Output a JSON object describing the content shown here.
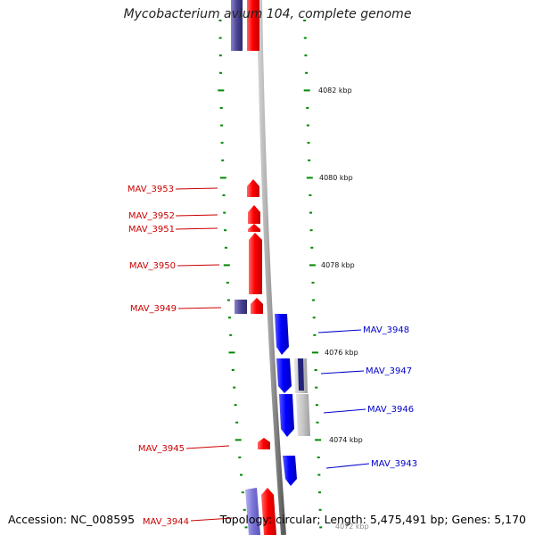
{
  "title": "Mycobacterium avium 104, complete genome",
  "footer": {
    "accession": "Accession: NC_008595",
    "summary": "Topology: circular; Length: 5,475,491 bp; Genes: 5,170"
  },
  "colors": {
    "forward_gene": "#ff0000",
    "reverse_gene": "#0000ff",
    "forward_label": "#cc0000",
    "reverse_label": "#0000cc",
    "tick": "#008800",
    "backbone": "#888888"
  },
  "scale": {
    "unit": "kbp",
    "labels": [
      {
        "value": 4082,
        "text": "4082 kbp"
      },
      {
        "value": 4080,
        "text": "4080 kbp"
      },
      {
        "value": 4078,
        "text": "4078 kbp"
      },
      {
        "value": 4076,
        "text": "4076 kbp"
      },
      {
        "value": 4074,
        "text": "4074 kbp"
      },
      {
        "value": 4072,
        "text": "4072 kbp"
      }
    ]
  },
  "gene_labels": {
    "forward": [
      "MAV_3953",
      "MAV_3952",
      "MAV_3951",
      "MAV_3950",
      "MAV_3949",
      "MAV_3945",
      "MAV_3944"
    ],
    "reverse": [
      "MAV_3948",
      "MAV_3947",
      "MAV_3946",
      "MAV_3943"
    ]
  }
}
